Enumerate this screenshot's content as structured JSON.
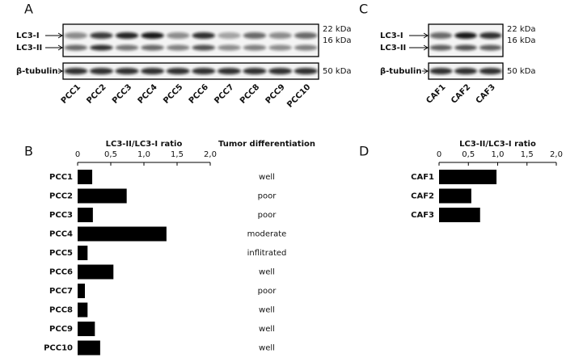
{
  "blots": [
    {
      "panel": "A",
      "lanes": [
        "PCC1",
        "PCC2",
        "PCC3",
        "PCC4",
        "PCC5",
        "PCC6",
        "PCC7",
        "PCC8",
        "PCC9",
        "PCC10"
      ],
      "bands": [
        "LC3-I",
        "LC3-II",
        "β-tubulin"
      ],
      "markers": [
        "22 kDa",
        "16 kDa",
        "50 kDa"
      ]
    },
    {
      "panel": "C",
      "lanes": [
        "CAF1",
        "CAF2",
        "CAF3"
      ],
      "bands": [
        "LC3-I",
        "LC3-II",
        "β-tubulin"
      ],
      "markers": [
        "22 kDa",
        "16 kDa",
        "50 kDa"
      ]
    }
  ],
  "chart_data": [
    {
      "type": "bar",
      "panel": "B",
      "xlabel": "LC3-II/LC3-I ratio",
      "categories": [
        "PCC1",
        "PCC2",
        "PCC3",
        "PCC4",
        "PCC5",
        "PCC6",
        "PCC7",
        "PCC8",
        "PCC9",
        "PCC10"
      ],
      "values": [
        0.22,
        0.74,
        0.23,
        1.34,
        0.15,
        0.54,
        0.11,
        0.15,
        0.26,
        0.34
      ],
      "color": "#000000",
      "xlim": [
        0,
        2
      ],
      "xticks": [
        0,
        {
          "value": 0.5,
          "label": "0,5"
        },
        {
          "value": 1,
          "label": "1,0"
        },
        {
          "value": 1.5,
          "label": "1,5"
        },
        {
          "value": 2,
          "label": "2,0"
        }
      ],
      "differentiation": {
        "title": "Tumor differentiation",
        "labels": [
          "well",
          "poor",
          "poor",
          "moderate",
          "inflitrated",
          "well",
          "poor",
          "well",
          "well",
          "well"
        ]
      }
    },
    {
      "type": "bar",
      "panel": "D",
      "xlabel": "LC3-II/LC3-I ratio",
      "categories": [
        "CAF1",
        "CAF2",
        "CAF3"
      ],
      "values": [
        0.98,
        0.55,
        0.7
      ],
      "color": "#000000",
      "xlim": [
        0,
        2
      ],
      "xticks": [
        0,
        {
          "value": 0.5,
          "label": "0,5"
        },
        {
          "value": 1,
          "label": "1,0"
        },
        {
          "value": 1.5,
          "label": "1,5"
        },
        {
          "value": 2,
          "label": "2,0"
        }
      ]
    }
  ]
}
